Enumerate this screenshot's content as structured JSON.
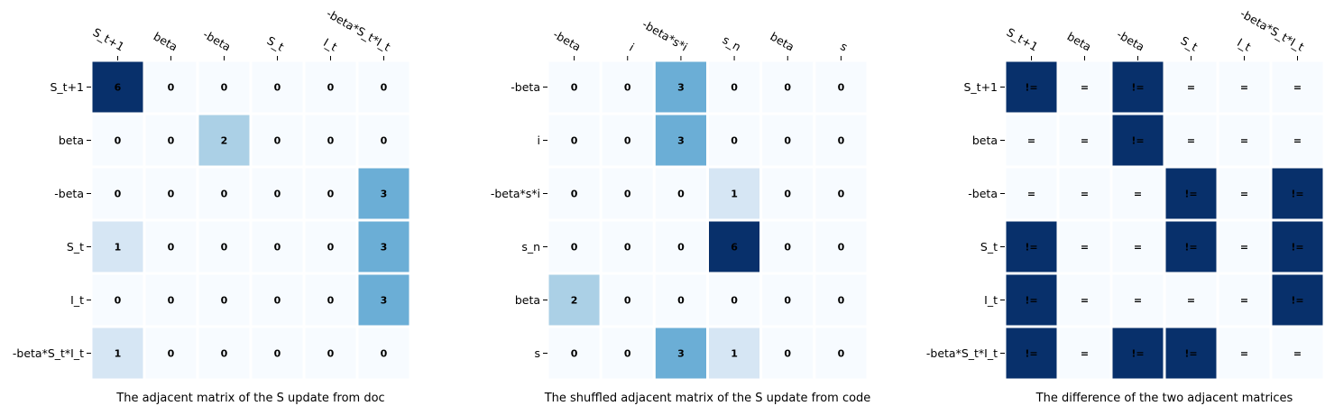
{
  "chart_data": [
    {
      "type": "heatmap",
      "title": "",
      "xlabel": "The adjacent matrix of the S update from doc",
      "ylabel": "",
      "x_labels": [
        "S_t+1",
        "beta",
        "-beta",
        "S_t",
        "I_t",
        "-beta*S_t*I_t"
      ],
      "y_labels": [
        "S_t+1",
        "beta",
        "-beta",
        "S_t",
        "I_t",
        "-beta*S_t*I_t"
      ],
      "values": [
        [
          6,
          0,
          0,
          0,
          0,
          0
        ],
        [
          0,
          0,
          2,
          0,
          0,
          0
        ],
        [
          0,
          0,
          0,
          0,
          0,
          3
        ],
        [
          1,
          0,
          0,
          0,
          0,
          3
        ],
        [
          0,
          0,
          0,
          0,
          0,
          3
        ],
        [
          1,
          0,
          0,
          0,
          0,
          0
        ]
      ],
      "vmin": 0,
      "vmax": 6,
      "colormap": "Blues"
    },
    {
      "type": "heatmap",
      "title": "",
      "xlabel": "The shuffled adjacent matrix of the S update from code",
      "ylabel": "",
      "x_labels": [
        "-beta",
        "i",
        "-beta*s*i",
        "s_n",
        "beta",
        "s"
      ],
      "y_labels": [
        "-beta",
        "i",
        "-beta*s*i",
        "s_n",
        "beta",
        "s"
      ],
      "values": [
        [
          0,
          0,
          3,
          0,
          0,
          0
        ],
        [
          0,
          0,
          3,
          0,
          0,
          0
        ],
        [
          0,
          0,
          0,
          1,
          0,
          0
        ],
        [
          0,
          0,
          0,
          6,
          0,
          0
        ],
        [
          2,
          0,
          0,
          0,
          0,
          0
        ],
        [
          0,
          0,
          3,
          1,
          0,
          0
        ]
      ],
      "vmin": 0,
      "vmax": 6,
      "colormap": "Blues"
    },
    {
      "type": "heatmap",
      "title": "",
      "xlabel": "The difference of the two adjacent matrices",
      "ylabel": "",
      "x_labels": [
        "S_t+1",
        "beta",
        "-beta",
        "S_t",
        "I_t",
        "-beta*S_t*I_t"
      ],
      "y_labels": [
        "S_t+1",
        "beta",
        "-beta",
        "S_t",
        "I_t",
        "-beta*S_t*I_t"
      ],
      "values": [
        [
          "!=",
          "=",
          "!=",
          "=",
          "=",
          "="
        ],
        [
          "=",
          "=",
          "!=",
          "=",
          "=",
          "="
        ],
        [
          "=",
          "=",
          "=",
          "!=",
          "=",
          "!="
        ],
        [
          "!=",
          "=",
          "=",
          "!=",
          "=",
          "!="
        ],
        [
          "!=",
          "=",
          "=",
          "=",
          "=",
          "!="
        ],
        [
          "!=",
          "=",
          "!=",
          "!=",
          "=",
          "="
        ]
      ],
      "colors": {
        "!=": "#08306b",
        "=": "#f7fbff"
      }
    }
  ]
}
